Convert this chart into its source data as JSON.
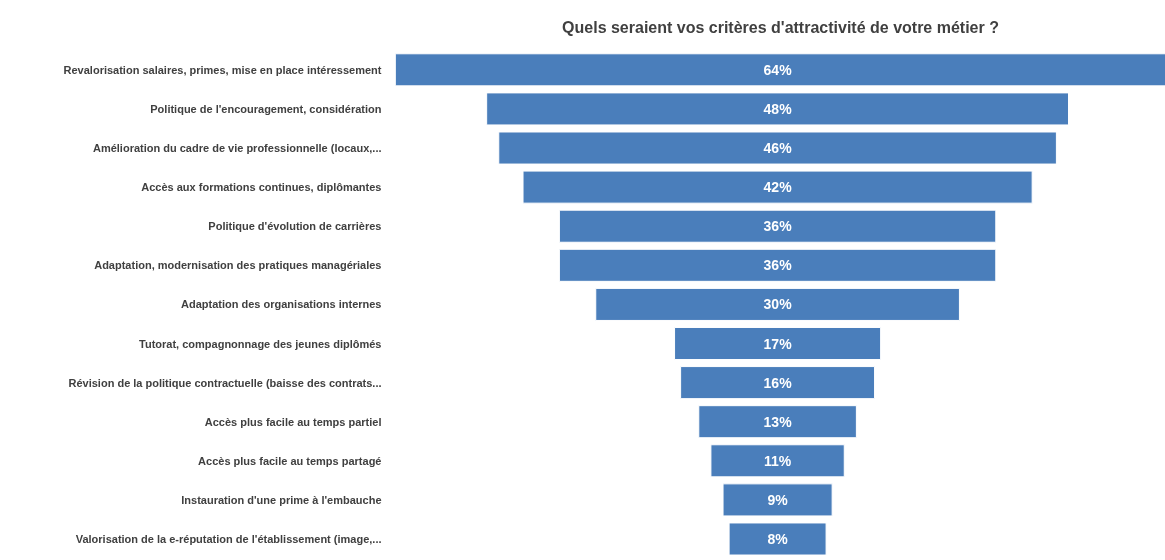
{
  "chart_data": {
    "type": "other",
    "title": "Quels seraient vos critères d'attractivité de votre métier ?",
    "categories": [
      "Revalorisation salaires, primes, mise en place intéressement",
      "Politique de l'encouragement, considération",
      "Amélioration du cadre de vie professionnelle (locaux,...",
      "Accès aux formations continues, diplômantes",
      "Politique d'évolution de carrières",
      "Adaptation, modernisation des pratiques managériales",
      "Adaptation des organisations internes",
      "Tutorat, compagnonnage des jeunes diplômés",
      "Révision de la politique contractuelle (baisse des contrats...",
      "Accès plus facile au temps partiel",
      "Accès plus facile au temps partagé",
      "Instauration d'une prime à l'embauche",
      "Valorisation de la e-réputation de l'établissement (image,..."
    ],
    "values": [
      64,
      48,
      46,
      42,
      36,
      36,
      30,
      17,
      16,
      13,
      11,
      9,
      8
    ],
    "value_labels": [
      "64%",
      "48%",
      "46%",
      "42%",
      "36%",
      "36%",
      "30%",
      "17%",
      "16%",
      "13%",
      "11%",
      "9%",
      "8%"
    ],
    "color": "#4a7ebb"
  }
}
